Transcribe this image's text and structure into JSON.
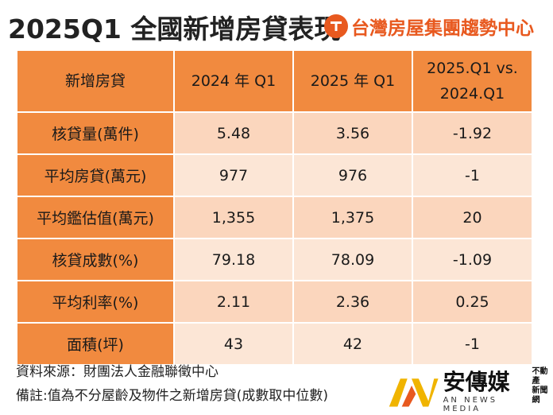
{
  "title": "2025Q1 全國新增房貸表現",
  "brand": {
    "name": "台灣房屋集團趨勢中心",
    "accent": "#e8591f"
  },
  "table": {
    "headers": [
      "新增房貸",
      "2024 年 Q1",
      "2025 年 Q1",
      "2025.Q1 vs.",
      "2024.Q1"
    ],
    "rows": [
      {
        "label": "核貸量(萬件)",
        "q1_2024": "5.48",
        "q1_2025": "3.56",
        "diff": "-1.92"
      },
      {
        "label": "平均房貸(萬元)",
        "q1_2024": "977",
        "q1_2025": "976",
        "diff": "-1"
      },
      {
        "label": "平均鑑估值(萬元)",
        "q1_2024": "1,355",
        "q1_2025": "1,375",
        "diff": "20"
      },
      {
        "label": "核貸成數(%)",
        "q1_2024": "79.18",
        "q1_2025": "78.09",
        "diff": "-1.09"
      },
      {
        "label": "平均利率(%)",
        "q1_2024": "2.11",
        "q1_2025": "2.36",
        "diff": "0.25"
      },
      {
        "label": "面積(坪)",
        "q1_2024": "43",
        "q1_2025": "42",
        "diff": "-1"
      }
    ]
  },
  "footer": {
    "source": "資料來源：財團法人金融聯徵中心",
    "note": "備註:值為不分屋齡及物件之新增房貸(成數取中位數)"
  },
  "media": {
    "name": "安傳媒",
    "sub": "AN NEWS MEDIA",
    "side_line1": "不動產",
    "side_line2": "新聞網"
  },
  "colors": {
    "header_orange": "#f18a3f",
    "cell_light": "#fbd6bd",
    "cell_lighter": "#fce6d6",
    "logo_orange": "#e8591f",
    "logo_gold": "#f0b400"
  }
}
